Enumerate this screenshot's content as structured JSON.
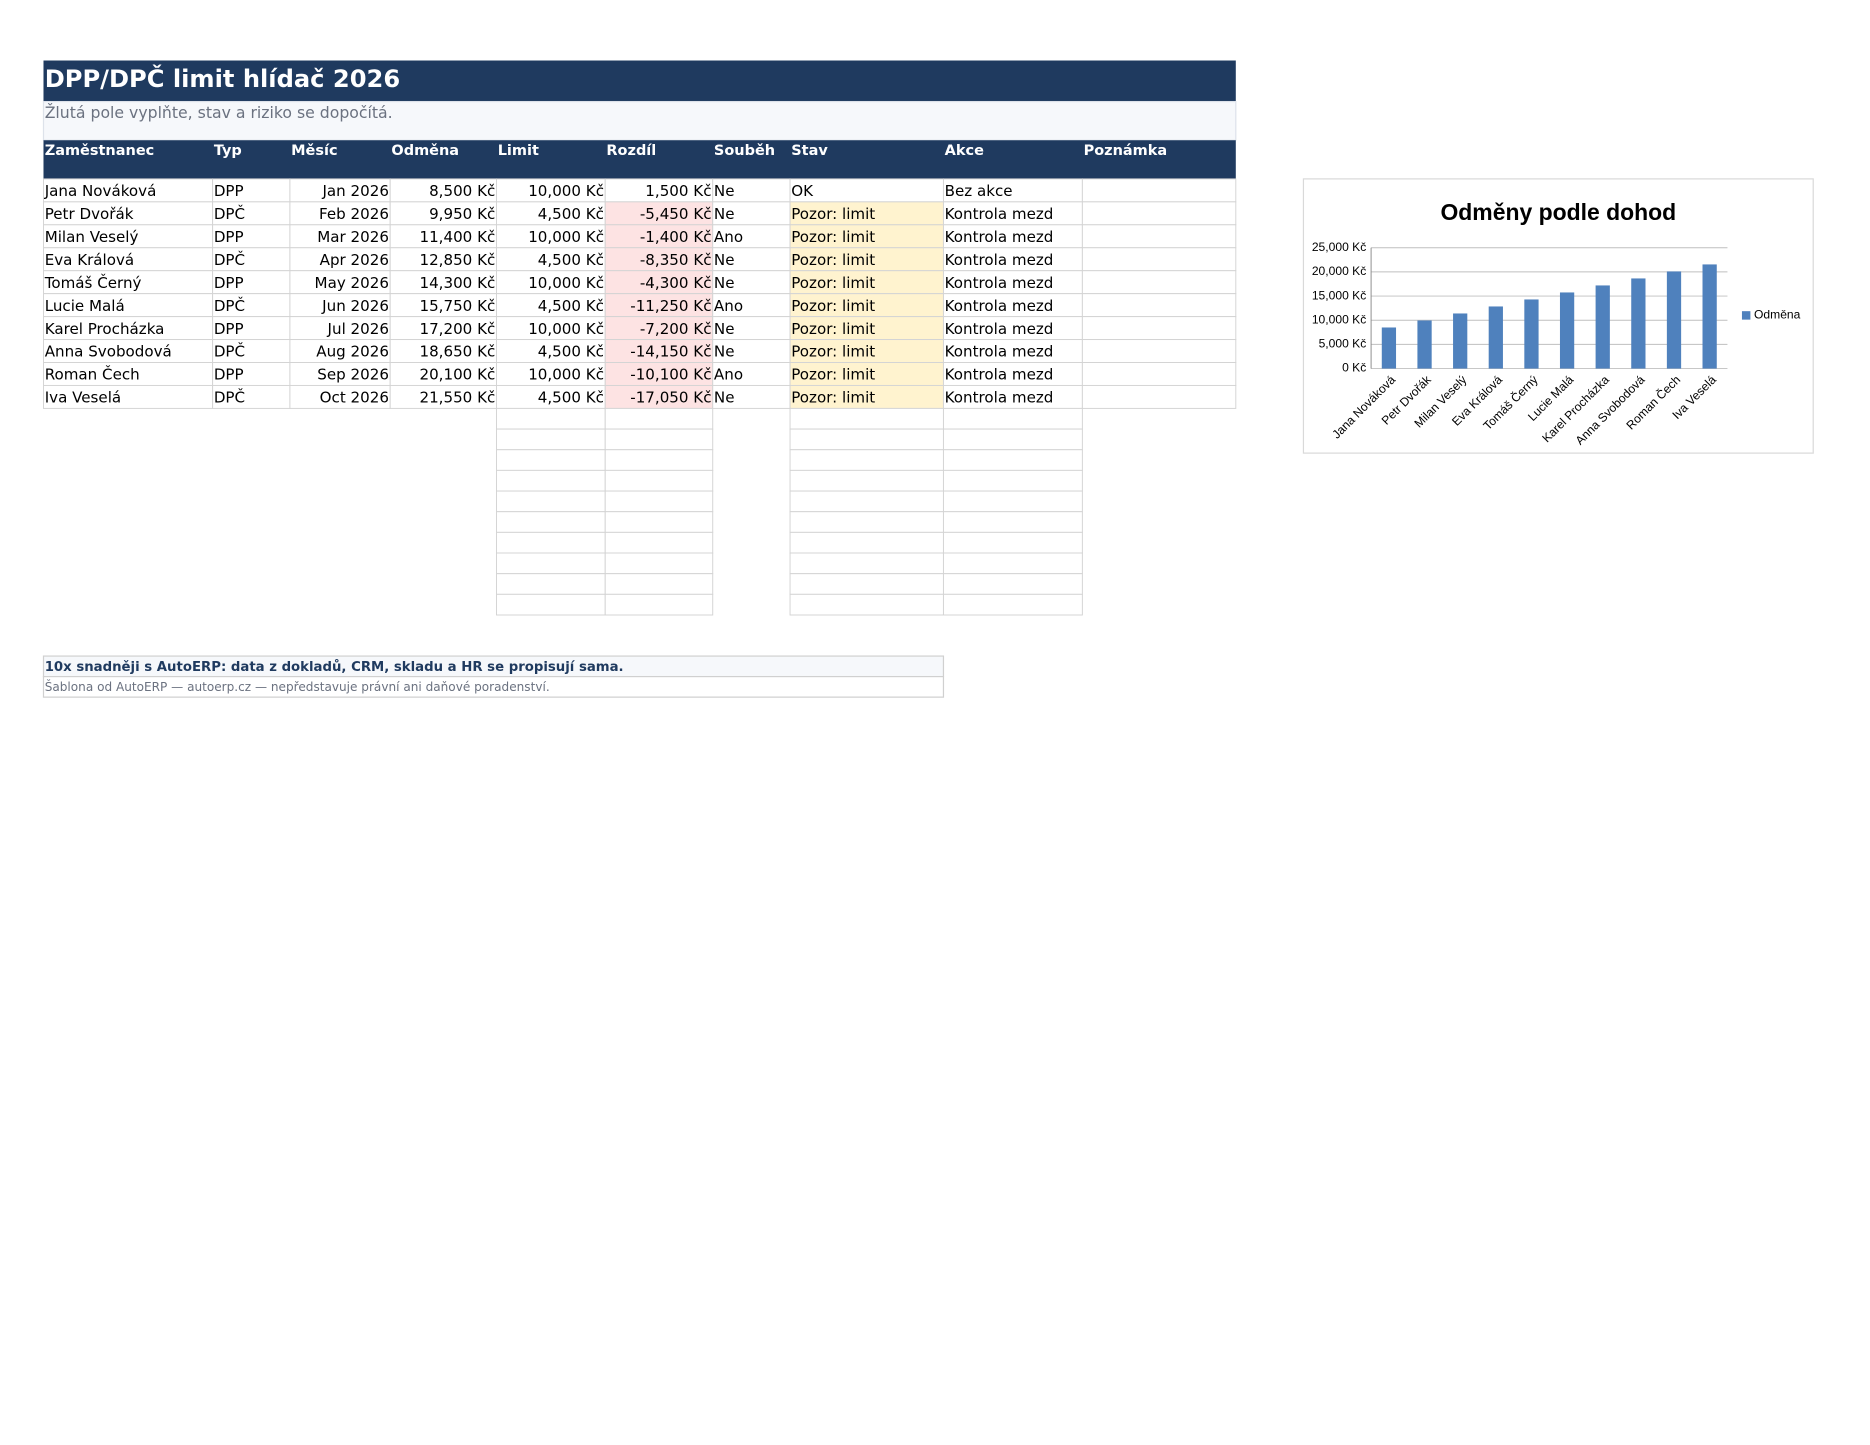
{
  "sheet": {
    "title": "DPP/DPČ limit hlídač 2026",
    "subtitle": "Žlutá pole vyplňte, stav a riziko se dopočítá.",
    "columns": [
      "Zaměstnanec",
      "Typ",
      "Měsíc",
      "Odměna",
      "Limit",
      "Rozdíl",
      "Souběh",
      "Stav",
      "Akce",
      "Poznámka"
    ],
    "rows": [
      [
        "Jana Nováková",
        "DPP",
        "Jan 2026",
        "8,500 Kč",
        "10,000 Kč",
        "1,500 Kč",
        "Ne",
        "OK",
        "Bez akce"
      ],
      [
        "Petr Dvořák",
        "DPČ",
        "Feb 2026",
        "9,950 Kč",
        "4,500 Kč",
        "-5,450 Kč",
        "Ne",
        "Pozor: limit",
        "Kontrola mezd"
      ],
      [
        "Milan Veselý",
        "DPP",
        "Mar 2026",
        "11,400 Kč",
        "10,000 Kč",
        "-1,400 Kč",
        "Ano",
        "Pozor: limit",
        "Kontrola mezd"
      ],
      [
        "Eva Králová",
        "DPČ",
        "Apr 2026",
        "12,850 Kč",
        "4,500 Kč",
        "-8,350 Kč",
        "Ne",
        "Pozor: limit",
        "Kontrola mezd"
      ],
      [
        "Tomáš Černý",
        "DPP",
        "May 2026",
        "14,300 Kč",
        "10,000 Kč",
        "-4,300 Kč",
        "Ne",
        "Pozor: limit",
        "Kontrola mezd"
      ],
      [
        "Lucie Malá",
        "DPČ",
        "Jun 2026",
        "15,750 Kč",
        "4,500 Kč",
        "-11,250 Kč",
        "Ano",
        "Pozor: limit",
        "Kontrola mezd"
      ],
      [
        "Karel Procházka",
        "DPP",
        "Jul 2026",
        "17,200 Kč",
        "10,000 Kč",
        "-7,200 Kč",
        "Ne",
        "Pozor: limit",
        "Kontrola mezd"
      ],
      [
        "Anna Svobodová",
        "DPČ",
        "Aug 2026",
        "18,650 Kč",
        "4,500 Kč",
        "-14,150 Kč",
        "Ne",
        "Pozor: limit",
        "Kontrola mezd"
      ],
      [
        "Roman Čech",
        "DPP",
        "Sep 2026",
        "20,100 Kč",
        "10,000 Kč",
        "-10,100 Kč",
        "Ano",
        "Pozor: limit",
        "Kontrola mezd"
      ],
      [
        "Iva Veselá",
        "DPČ",
        "Oct 2026",
        "21,550 Kč",
        "4,500 Kč",
        "-17,050 Kč",
        "Ne",
        "Pozor: limit",
        "Kontrola mezd"
      ]
    ],
    "footer": [
      "10x snadněji s AutoERP: data z dokladů, CRM, skladu a HR se propisují sama.",
      "Šablona od AutoERP — autoerp.cz — nepředstavuje právní ani daňové poradenství."
    ]
  },
  "chart_data": {
    "type": "bar",
    "title": "Odměny podle dohod",
    "categories": [
      "Jana Nováková",
      "Petr Dvořák",
      "Milan Veselý",
      "Eva Králová",
      "Tomáš Černý",
      "Lucie Malá",
      "Karel Procházka",
      "Anna Svobodová",
      "Roman Čech",
      "Iva Veselá"
    ],
    "series": [
      {
        "name": "Odměna",
        "color": "#4f81bd",
        "values": [
          8500,
          9950,
          11400,
          12850,
          14300,
          15750,
          17200,
          18650,
          20100,
          21550
        ]
      }
    ],
    "ylim": [
      0,
      25000
    ],
    "yticks": [
      {
        "value": 0,
        "label": "0 Kč"
      },
      {
        "value": 5000,
        "label": "5,000 Kč"
      },
      {
        "value": 10000,
        "label": "10,000 Kč"
      },
      {
        "value": 15000,
        "label": "15,000 Kč"
      },
      {
        "value": 20000,
        "label": "20,000 Kč"
      },
      {
        "value": 25000,
        "label": "25,000 Kč"
      }
    ],
    "grid": true,
    "legend": "right"
  }
}
